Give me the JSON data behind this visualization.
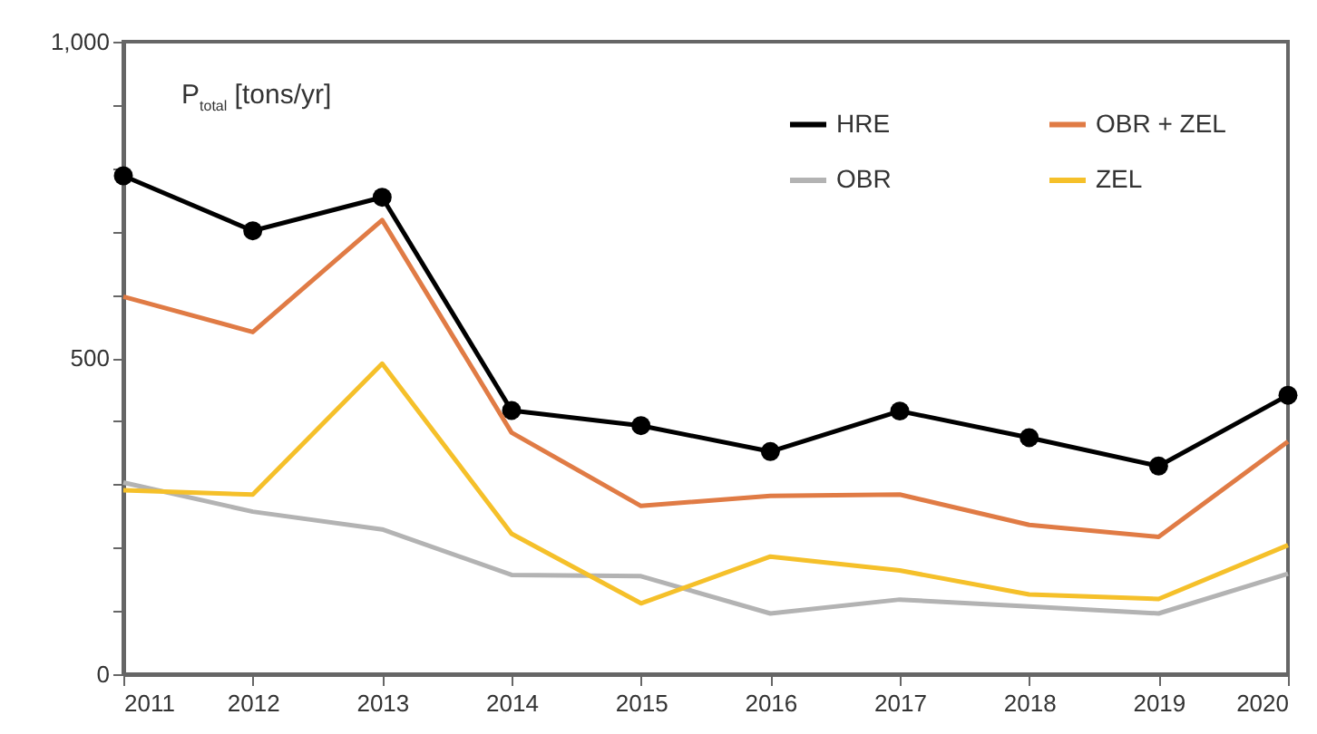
{
  "chart_data": {
    "type": "line",
    "ylabel": "P$_{total}$ [tons/yr]",
    "x": [
      2011,
      2012,
      2013,
      2014,
      2015,
      2016,
      2017,
      2018,
      2019,
      2020
    ],
    "xlim": [
      2011,
      2020
    ],
    "xticks": [
      2011,
      2012,
      2013,
      2014,
      2015,
      2016,
      2017,
      2018,
      2019,
      2020
    ],
    "ylim": [
      0,
      1000
    ],
    "yticks": [
      0,
      {
        "value": 100,
        "label": null
      },
      {
        "value": 200,
        "label": null
      },
      {
        "value": 300,
        "label": null
      },
      {
        "value": 400,
        "label": null
      },
      {
        "value": 500,
        "label": "500"
      },
      {
        "value": 600,
        "label": null
      },
      {
        "value": 700,
        "label": null
      },
      {
        "value": 800,
        "label": null
      },
      {
        "value": 900,
        "label": null
      },
      {
        "value": 1000,
        "label": "1,000"
      }
    ],
    "grid": false,
    "legend": "top right",
    "line_style": "solid",
    "series": [
      {
        "name": "HRE",
        "color": "#000000",
        "marker": "circle",
        "values": [
          788,
          701,
          754,
          417,
          393,
          352,
          416,
          374,
          329,
          441
        ]
      },
      {
        "name": "OBR + ZEL",
        "color": "#e07b45",
        "marker": "none",
        "values": [
          597,
          541,
          718,
          382,
          266,
          282,
          284,
          236,
          217,
          368
        ]
      },
      {
        "name": "OBR",
        "color": "#b3b3b3",
        "marker": "none",
        "values": [
          303,
          257,
          229,
          157,
          155,
          96,
          118,
          107,
          96,
          159
        ]
      },
      {
        "name": "ZEL",
        "color": "#f5c02a",
        "marker": "none",
        "values": [
          291,
          284,
          491,
          222,
          112,
          186,
          164,
          126,
          119,
          204
        ]
      }
    ]
  }
}
